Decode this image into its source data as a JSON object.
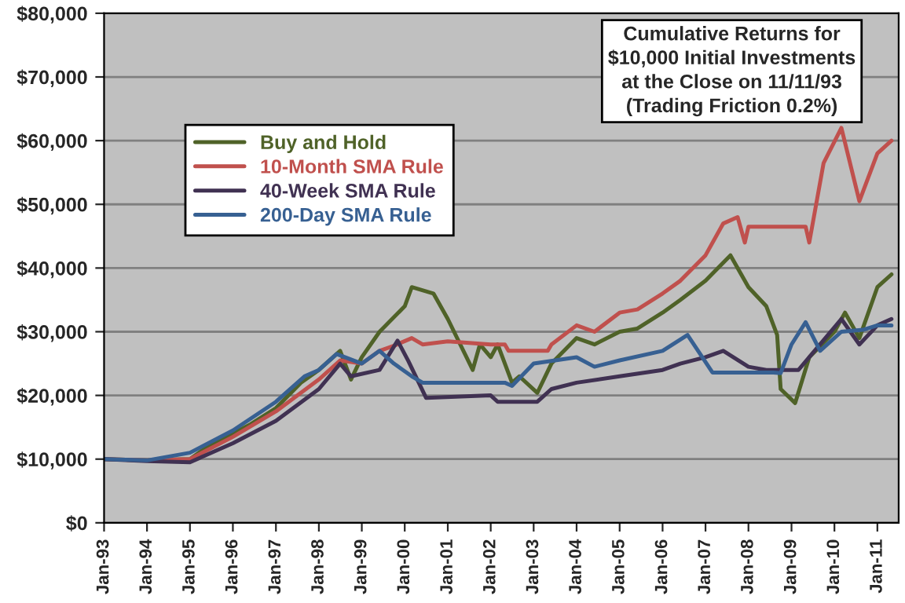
{
  "chart_data": {
    "type": "line",
    "title": "Cumulative Returns for\n$10,000 Initial Investments\nat the Close on 11/11/93\n(Trading Friction 0.2%)",
    "x": [
      "1993-01",
      "1994-01",
      "1995-01",
      "1995-06",
      "1996-01",
      "1996-06",
      "1997-01",
      "1997-08",
      "1998-01",
      "1998-07",
      "1998-10",
      "1999-01",
      "1999-06",
      "2000-01",
      "2000-03",
      "2000-09",
      "2001-01",
      "2001-08",
      "2001-10",
      "2002-01",
      "2002-03",
      "2002-07",
      "2002-09",
      "2003-02",
      "2003-06",
      "2004-01",
      "2004-06",
      "2005-01",
      "2005-06",
      "2006-01",
      "2006-06",
      "2007-01",
      "2007-08",
      "2008-01",
      "2008-06",
      "2008-09",
      "2008-10",
      "2009-02",
      "2009-06",
      "2010-01",
      "2010-04",
      "2010-08",
      "2011-01",
      "2011-05"
    ],
    "series": [
      {
        "name": "Buy and Hold",
        "color": "#4f6228",
        "values": [
          10000,
          9800,
          10000,
          12000,
          14000,
          15500,
          18000,
          22000,
          24000,
          27000,
          22500,
          26000,
          30000,
          34000,
          37000,
          36000,
          32000,
          24000,
          28000,
          26000,
          28000,
          22000,
          23000,
          20400,
          25000,
          29000,
          28000,
          30000,
          30500,
          33000,
          35000,
          38000,
          42000,
          37000,
          34000,
          29500,
          21000,
          18800,
          26000,
          30000,
          33000,
          29000,
          37000,
          39000
        ]
      },
      {
        "name": "10-Month SMA Rule",
        "color": "#c0504d",
        "x": [
          "1993-01",
          "1994-01",
          "1995-01",
          "1996-01",
          "1997-01",
          "1998-01",
          "1998-07",
          "1999-01",
          "1999-06",
          "1999-10",
          "2000-03",
          "2000-06",
          "2001-01",
          "2002-01",
          "2002-05",
          "2002-06",
          "2003-05",
          "2003-06",
          "2004-01",
          "2004-06",
          "2005-01",
          "2005-06",
          "2006-01",
          "2006-06",
          "2007-01",
          "2007-06",
          "2007-10",
          "2007-12",
          "2008-01",
          "2009-05",
          "2009-06",
          "2009-10",
          "2010-03",
          "2010-08",
          "2011-01",
          "2011-05"
        ],
        "values": [
          10000,
          9800,
          10000,
          13500,
          17500,
          22500,
          25500,
          25000,
          27000,
          27800,
          29000,
          28000,
          28500,
          28000,
          28000,
          27000,
          27000,
          28000,
          31000,
          30000,
          33000,
          33500,
          36000,
          38000,
          42000,
          47000,
          48000,
          44000,
          46500,
          46500,
          44000,
          56500,
          62000,
          50500,
          58000,
          60000
        ]
      },
      {
        "name": "40-Week SMA Rule",
        "color": "#403152",
        "x": [
          "1993-01",
          "1994-01",
          "1995-01",
          "1996-01",
          "1997-01",
          "1998-01",
          "1998-07",
          "1998-10",
          "1999-06",
          "1999-11",
          "2000-02",
          "2000-07",
          "2002-01",
          "2002-03",
          "2003-02",
          "2003-06",
          "2004-01",
          "2005-01",
          "2006-01",
          "2006-06",
          "2007-01",
          "2007-06",
          "2008-01",
          "2008-06",
          "2009-03",
          "2009-06",
          "2010-03",
          "2010-08",
          "2011-01",
          "2011-05"
        ],
        "values": [
          10000,
          9700,
          9500,
          12500,
          16000,
          21000,
          25000,
          23000,
          24000,
          28600,
          25400,
          19600,
          20000,
          19000,
          19000,
          21000,
          22000,
          23000,
          24000,
          25000,
          26000,
          27000,
          24500,
          24000,
          24000,
          26000,
          32000,
          28000,
          31000,
          32000
        ]
      },
      {
        "name": "200-Day SMA Rule",
        "color": "#376092",
        "x": [
          "1993-01",
          "1994-01",
          "1995-01",
          "1996-01",
          "1997-01",
          "1997-09",
          "1998-01",
          "1998-06",
          "1999-01",
          "1999-06",
          "1999-10",
          "2000-03",
          "2000-06",
          "2002-05",
          "2002-07",
          "2003-01",
          "2004-01",
          "2004-06",
          "2005-01",
          "2006-01",
          "2006-08",
          "2007-03",
          "2008-08",
          "2008-10",
          "2009-01",
          "2009-05",
          "2009-09",
          "2010-03",
          "2010-09",
          "2011-01",
          "2011-05"
        ],
        "values": [
          10000,
          9800,
          11000,
          14500,
          19000,
          23000,
          24000,
          26500,
          25000,
          27000,
          25000,
          23000,
          22000,
          22000,
          21500,
          25000,
          26000,
          24500,
          25500,
          27000,
          29500,
          23600,
          23600,
          23500,
          28000,
          31500,
          27000,
          30000,
          30300,
          31000,
          31000
        ]
      }
    ],
    "xlim": [
      "1993-01",
      "2011-07"
    ],
    "xticks": [
      {
        "value": "1993-01",
        "label": "Jan-93"
      },
      {
        "value": "1994-01",
        "label": "Jan-94"
      },
      {
        "value": "1995-01",
        "label": "Jan-95"
      },
      {
        "value": "1996-01",
        "label": "Jan-96"
      },
      {
        "value": "1997-01",
        "label": "Jan-97"
      },
      {
        "value": "1998-01",
        "label": "Jan-98"
      },
      {
        "value": "1999-01",
        "label": "Jan-99"
      },
      {
        "value": "2000-01",
        "label": "Jan-00"
      },
      {
        "value": "2001-01",
        "label": "Jan-01"
      },
      {
        "value": "2002-01",
        "label": "Jan-02"
      },
      {
        "value": "2003-01",
        "label": "Jan-03"
      },
      {
        "value": "2004-01",
        "label": "Jan-04"
      },
      {
        "value": "2005-01",
        "label": "Jan-05"
      },
      {
        "value": "2006-01",
        "label": "Jan-06"
      },
      {
        "value": "2007-01",
        "label": "Jan-07"
      },
      {
        "value": "2008-01",
        "label": "Jan-08"
      },
      {
        "value": "2009-01",
        "label": "Jan-09"
      },
      {
        "value": "2010-01",
        "label": "Jan-10"
      },
      {
        "value": "2011-01",
        "label": "Jan-11"
      }
    ],
    "ylim": [
      0,
      80000
    ],
    "yticks": [
      {
        "value": 0,
        "label": "$0"
      },
      {
        "value": 10000,
        "label": "$10,000"
      },
      {
        "value": 20000,
        "label": "$20,000"
      },
      {
        "value": 30000,
        "label": "$30,000"
      },
      {
        "value": 40000,
        "label": "$40,000"
      },
      {
        "value": 50000,
        "label": "$50,000"
      },
      {
        "value": 60000,
        "label": "$60,000"
      },
      {
        "value": 70000,
        "label": "$70,000"
      },
      {
        "value": 80000,
        "label": "$80,000"
      }
    ],
    "grid": "y",
    "legend": "top left",
    "marker": "none",
    "line_style": "solid"
  }
}
